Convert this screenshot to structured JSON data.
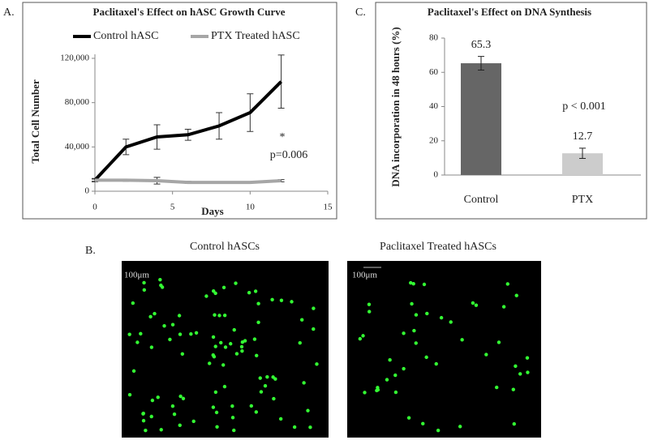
{
  "chart_data": [
    {
      "type": "line",
      "title": "Paclitaxel's Effect on hASC Growth Curve",
      "x_label": "Days",
      "y_label": "Total Cell Number",
      "x": [
        0,
        2,
        4,
        6,
        8,
        10,
        12
      ],
      "series": [
        {
          "name": "Control hASC",
          "color": "#000000",
          "values": [
            10000,
            40000,
            49000,
            51000,
            59000,
            71000,
            99000
          ],
          "errors": [
            1500,
            7000,
            11000,
            5000,
            12000,
            17000,
            24000
          ]
        },
        {
          "name": "PTX Treated hASC",
          "color": "#a6a6a6",
          "values": [
            10000,
            10000,
            9500,
            8000,
            8000,
            8000,
            9500
          ],
          "errors": [
            1000,
            1000,
            3000,
            1000,
            600,
            600,
            1000
          ]
        }
      ],
      "xlim": [
        0,
        15
      ],
      "xticks": [
        0,
        5,
        10,
        15
      ],
      "ylim": [
        0,
        120000
      ],
      "yticks": [
        0,
        {
          "value": 40000,
          "label": "40,000"
        },
        {
          "value": 80000,
          "label": "80,000"
        },
        {
          "value": 120000,
          "label": "120,000"
        }
      ],
      "annotations": [
        "*",
        "p=0.006"
      ],
      "legend": "top"
    },
    {
      "type": "bar",
      "title": "Paclitaxel's Effect on DNA Synthesis",
      "y_label": "DNA incorporation in 48 hours (%)",
      "categories": [
        "Control",
        "PTX"
      ],
      "values": [
        65.3,
        12.7
      ],
      "errors": [
        4,
        3
      ],
      "colors": [
        "#666666",
        "#cccccc"
      ],
      "ylim": [
        0,
        80
      ],
      "yticks": [
        0,
        20,
        40,
        60,
        80
      ],
      "annotations": [
        "p < 0.001"
      ]
    }
  ],
  "panels": {
    "a": "A.",
    "b": "B.",
    "c": "C."
  },
  "images": [
    {
      "title": "Control hASCs",
      "scale": "100μm"
    },
    {
      "title": "Paclitaxel Treated hASCs",
      "scale": "100μm"
    }
  ]
}
